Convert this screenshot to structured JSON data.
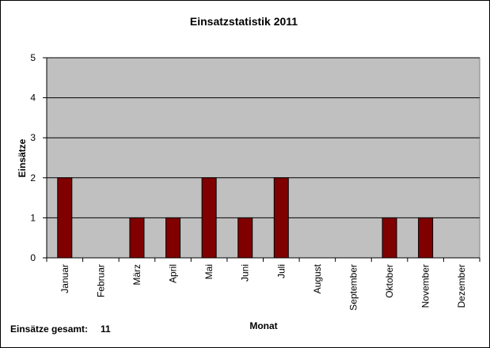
{
  "chart_data": {
    "type": "bar",
    "title": "Einsatzstatistik 2011",
    "xlabel": "Monat",
    "ylabel": "Einsätze",
    "categories": [
      "Januar",
      "Februar",
      "März",
      "April",
      "Mai",
      "Juni",
      "Juli",
      "August",
      "September",
      "Oktober",
      "November",
      "Dezember"
    ],
    "values": [
      2,
      0,
      1,
      1,
      2,
      1,
      2,
      0,
      0,
      1,
      1,
      0
    ],
    "ylim": [
      0,
      5
    ],
    "yticks": [
      "0",
      "1",
      "2",
      "3",
      "4",
      "5"
    ],
    "grid": true,
    "legend": "none",
    "colors": {
      "bar": "#800000",
      "plot_background": "#c0c0c0",
      "gridline": "#000000"
    }
  },
  "summary": {
    "label": "Einsätze gesamt:",
    "value": "11"
  }
}
